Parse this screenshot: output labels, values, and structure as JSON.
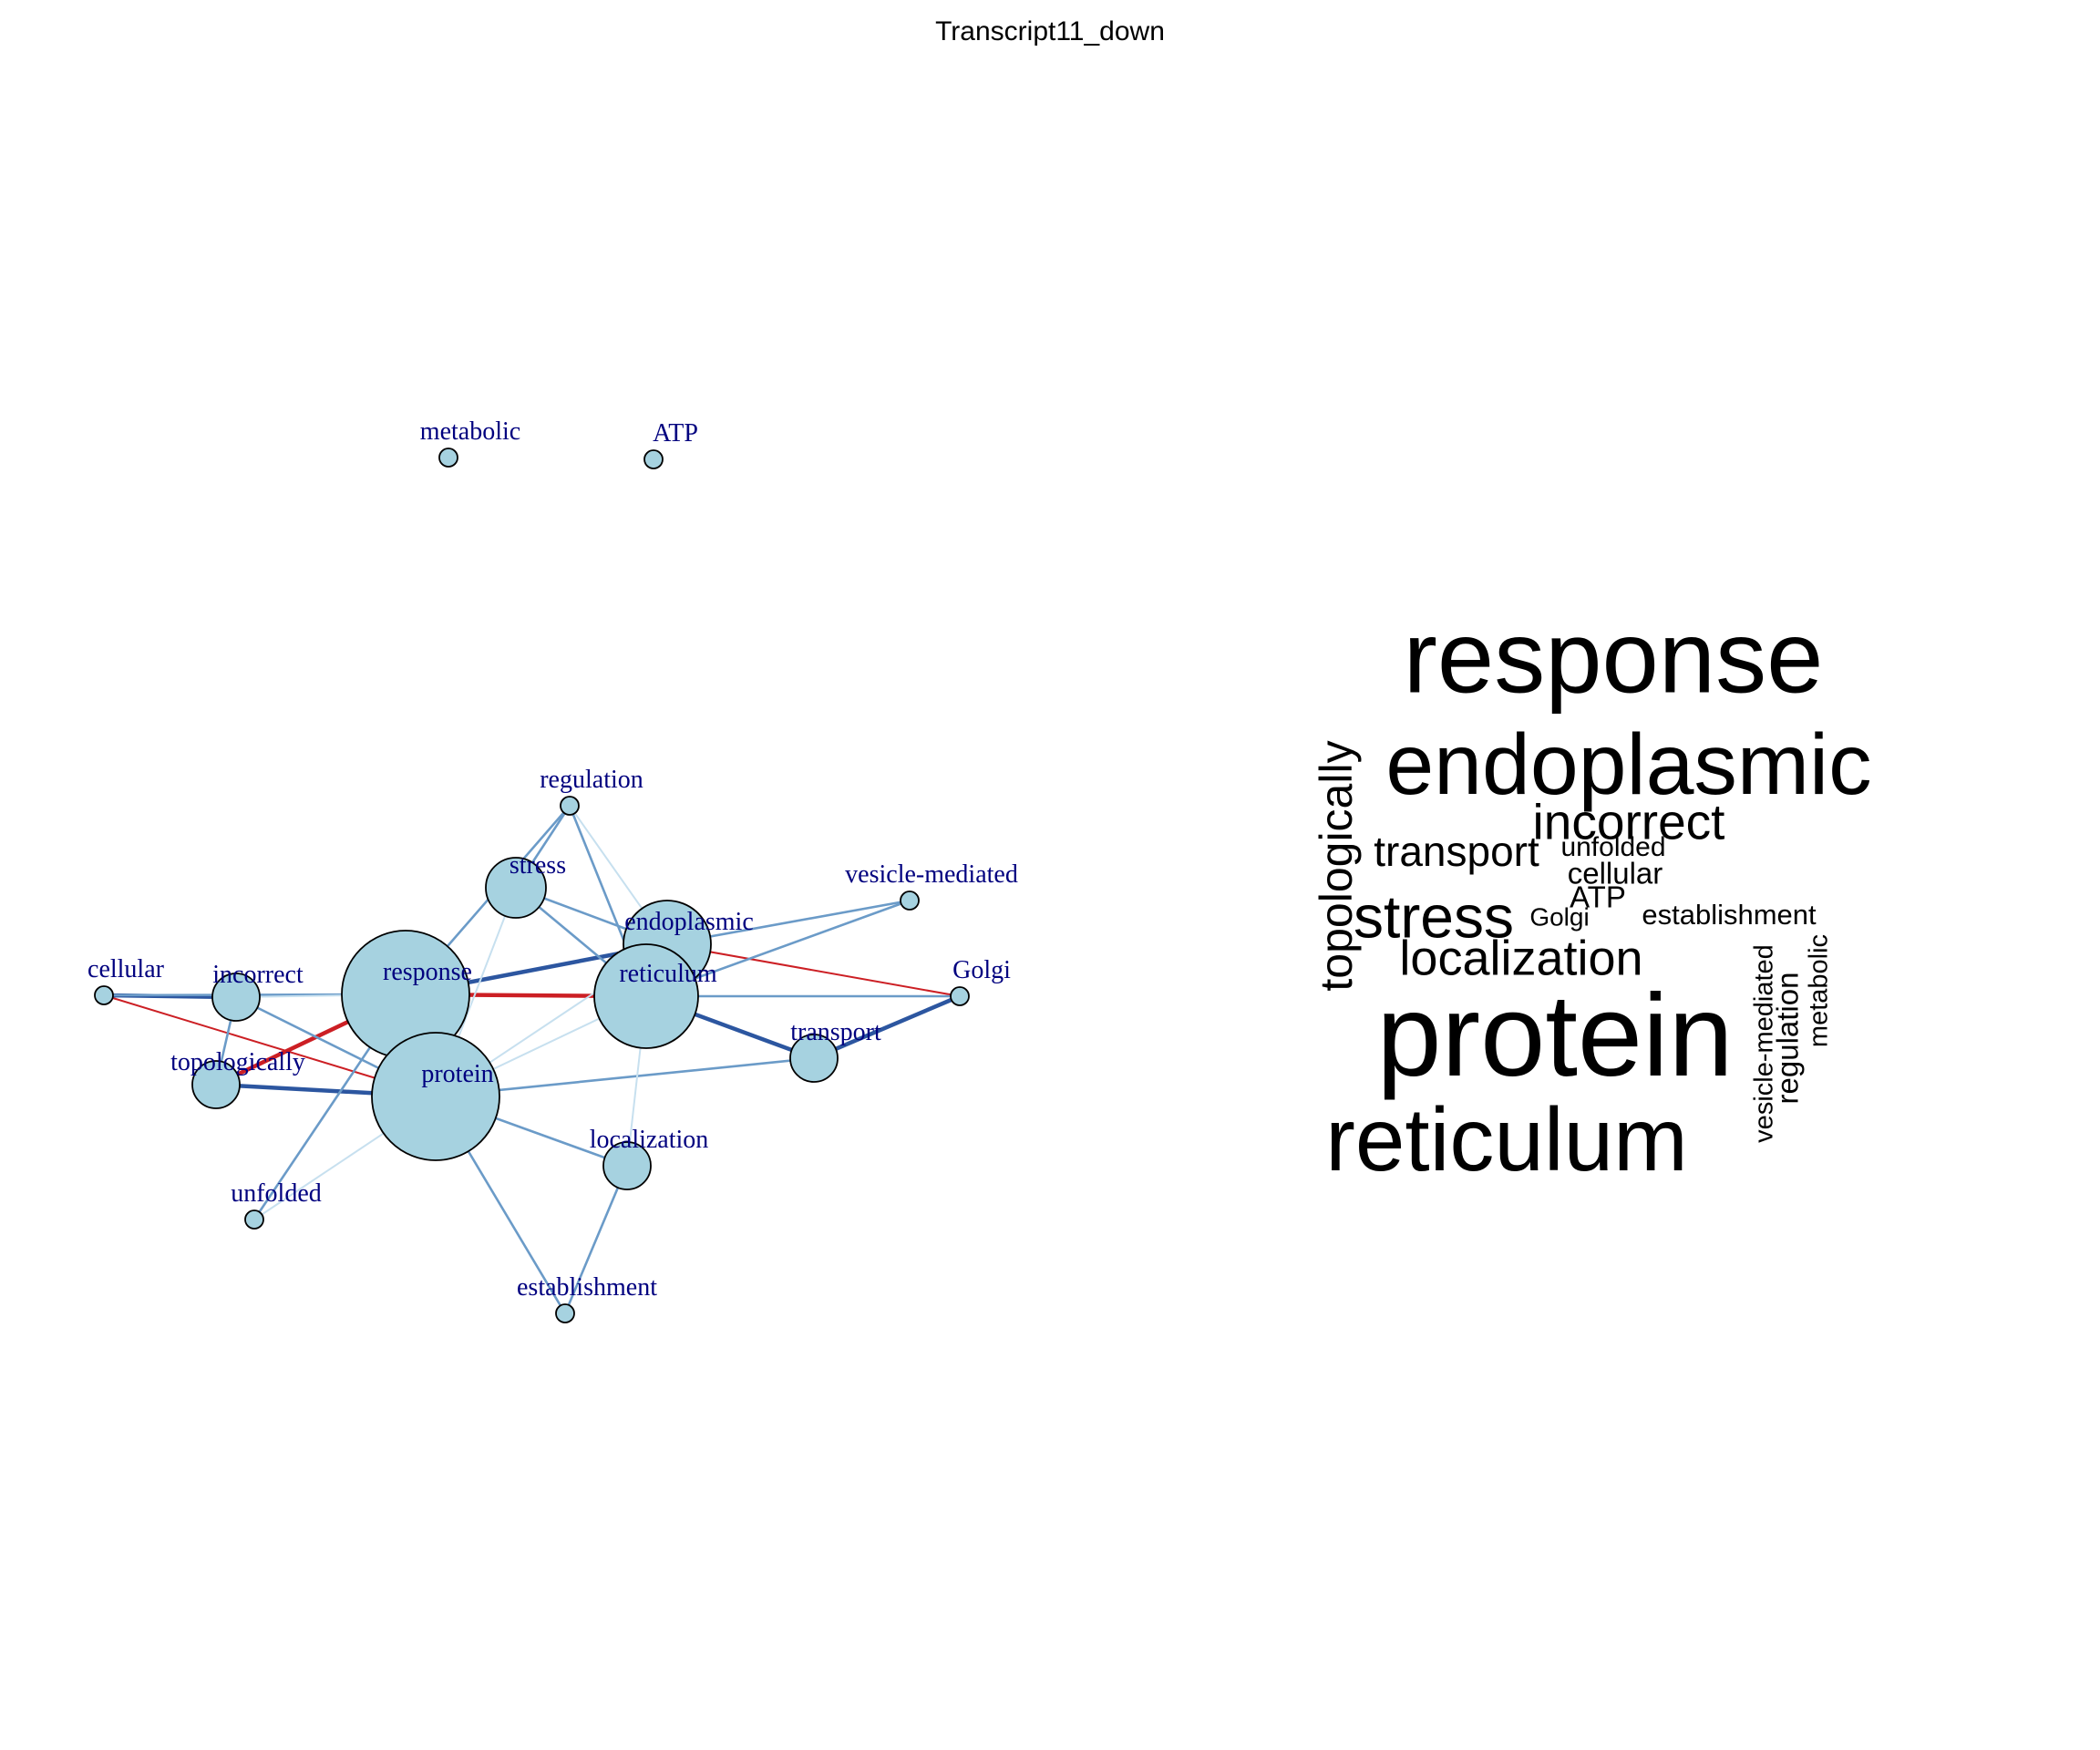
{
  "title": "Transcript11_down",
  "colors": {
    "node_fill": "#a6d2e0",
    "node_stroke": "#000000",
    "label": "#00007f",
    "edge_positive_strong": "#2c56a0",
    "edge_positive_medium": "#6b9bc8",
    "edge_positive_weak": "#c7e0ef",
    "edge_negative": "#cc1f24",
    "wordcloud_text": "#000000"
  },
  "network": {
    "nodes": [
      {
        "id": "metabolic",
        "label": "metabolic",
        "size": 1
      },
      {
        "id": "ATP",
        "label": "ATP",
        "size": 1
      },
      {
        "id": "regulation",
        "label": "regulation",
        "size": 1
      },
      {
        "id": "stress",
        "label": "stress",
        "size": 3
      },
      {
        "id": "vesicle-mediated",
        "label": "vesicle-mediated",
        "size": 1
      },
      {
        "id": "endoplasmic",
        "label": "endoplasmic",
        "size": 4
      },
      {
        "id": "cellular",
        "label": "cellular",
        "size": 1
      },
      {
        "id": "incorrect",
        "label": "incorrect",
        "size": 2
      },
      {
        "id": "response",
        "label": "response",
        "size": 6
      },
      {
        "id": "reticulum",
        "label": "reticulum",
        "size": 5
      },
      {
        "id": "Golgi",
        "label": "Golgi",
        "size": 1
      },
      {
        "id": "transport",
        "label": "transport",
        "size": 2
      },
      {
        "id": "topologically",
        "label": "topologically",
        "size": 2
      },
      {
        "id": "protein",
        "label": "protein",
        "size": 6
      },
      {
        "id": "localization",
        "label": "localization",
        "size": 2
      },
      {
        "id": "unfolded",
        "label": "unfolded",
        "size": 1
      },
      {
        "id": "establishment",
        "label": "establishment",
        "size": 1
      }
    ],
    "edges": [
      {
        "source": "response",
        "target": "reticulum",
        "sign": "negative",
        "strength": "strong"
      },
      {
        "source": "topologically",
        "target": "response",
        "sign": "negative",
        "strength": "strong"
      },
      {
        "source": "cellular",
        "target": "protein",
        "sign": "negative",
        "strength": "weak"
      },
      {
        "source": "endoplasmic",
        "target": "Golgi",
        "sign": "negative",
        "strength": "weak"
      },
      {
        "source": "response",
        "target": "endoplasmic",
        "sign": "positive",
        "strength": "strong"
      },
      {
        "source": "topologically",
        "target": "protein",
        "sign": "positive",
        "strength": "strong"
      },
      {
        "source": "incorrect",
        "target": "topologically",
        "sign": "positive",
        "strength": "medium"
      },
      {
        "source": "incorrect",
        "target": "protein",
        "sign": "positive",
        "strength": "medium"
      },
      {
        "source": "stress",
        "target": "reticulum",
        "sign": "positive",
        "strength": "medium"
      },
      {
        "source": "stress",
        "target": "endoplasmic",
        "sign": "positive",
        "strength": "medium"
      },
      {
        "source": "protein",
        "target": "localization",
        "sign": "positive",
        "strength": "medium"
      },
      {
        "source": "cellular",
        "target": "incorrect",
        "sign": "positive",
        "strength": "strong"
      },
      {
        "source": "cellular",
        "target": "response",
        "sign": "positive",
        "strength": "medium"
      },
      {
        "source": "regulation",
        "target": "stress",
        "sign": "positive",
        "strength": "medium"
      },
      {
        "source": "regulation",
        "target": "response",
        "sign": "positive",
        "strength": "medium"
      },
      {
        "source": "regulation",
        "target": "reticulum",
        "sign": "positive",
        "strength": "medium"
      },
      {
        "source": "regulation",
        "target": "endoplasmic",
        "sign": "positive",
        "strength": "weak"
      },
      {
        "source": "vesicle-mediated",
        "target": "endoplasmic",
        "sign": "positive",
        "strength": "medium"
      },
      {
        "source": "vesicle-mediated",
        "target": "reticulum",
        "sign": "positive",
        "strength": "medium"
      },
      {
        "source": "Golgi",
        "target": "reticulum",
        "sign": "positive",
        "strength": "medium"
      },
      {
        "source": "Golgi",
        "target": "transport",
        "sign": "positive",
        "strength": "strong"
      },
      {
        "source": "transport",
        "target": "reticulum",
        "sign": "positive",
        "strength": "strong"
      },
      {
        "source": "transport",
        "target": "protein",
        "sign": "positive",
        "strength": "medium"
      },
      {
        "source": "reticulum",
        "target": "localization",
        "sign": "positive",
        "strength": "weak"
      },
      {
        "source": "reticulum",
        "target": "protein",
        "sign": "positive",
        "strength": "weak"
      },
      {
        "source": "protein",
        "target": "establishment",
        "sign": "positive",
        "strength": "medium"
      },
      {
        "source": "localization",
        "target": "establishment",
        "sign": "positive",
        "strength": "medium"
      },
      {
        "source": "response",
        "target": "unfolded",
        "sign": "positive",
        "strength": "medium"
      },
      {
        "source": "endoplasmic",
        "target": "unfolded",
        "sign": "positive",
        "strength": "weak"
      },
      {
        "source": "stress",
        "target": "protein",
        "sign": "positive",
        "strength": "weak"
      },
      {
        "source": "response",
        "target": "protein",
        "sign": "positive",
        "strength": "medium"
      },
      {
        "source": "incorrect",
        "target": "response",
        "sign": "positive",
        "strength": "weak"
      }
    ]
  },
  "wordcloud": {
    "words": [
      {
        "text": "response",
        "weight": 6,
        "orientation": "horizontal"
      },
      {
        "text": "endoplasmic",
        "weight": 5,
        "orientation": "horizontal"
      },
      {
        "text": "protein",
        "weight": 6,
        "orientation": "horizontal"
      },
      {
        "text": "reticulum",
        "weight": 5,
        "orientation": "horizontal"
      },
      {
        "text": "incorrect",
        "weight": 3,
        "orientation": "horizontal"
      },
      {
        "text": "topologically",
        "weight": 3,
        "orientation": "vertical"
      },
      {
        "text": "transport",
        "weight": 3,
        "orientation": "horizontal"
      },
      {
        "text": "stress",
        "weight": 4,
        "orientation": "horizontal"
      },
      {
        "text": "localization",
        "weight": 3,
        "orientation": "horizontal"
      },
      {
        "text": "unfolded",
        "weight": 2,
        "orientation": "horizontal"
      },
      {
        "text": "cellular",
        "weight": 2,
        "orientation": "horizontal"
      },
      {
        "text": "ATP",
        "weight": 2,
        "orientation": "horizontal"
      },
      {
        "text": "Golgi",
        "weight": 1,
        "orientation": "horizontal"
      },
      {
        "text": "establishment",
        "weight": 2,
        "orientation": "horizontal"
      },
      {
        "text": "vesicle-mediated",
        "weight": 1,
        "orientation": "vertical"
      },
      {
        "text": "regulation",
        "weight": 2,
        "orientation": "vertical"
      },
      {
        "text": "metabolic",
        "weight": 1,
        "orientation": "vertical"
      }
    ]
  }
}
